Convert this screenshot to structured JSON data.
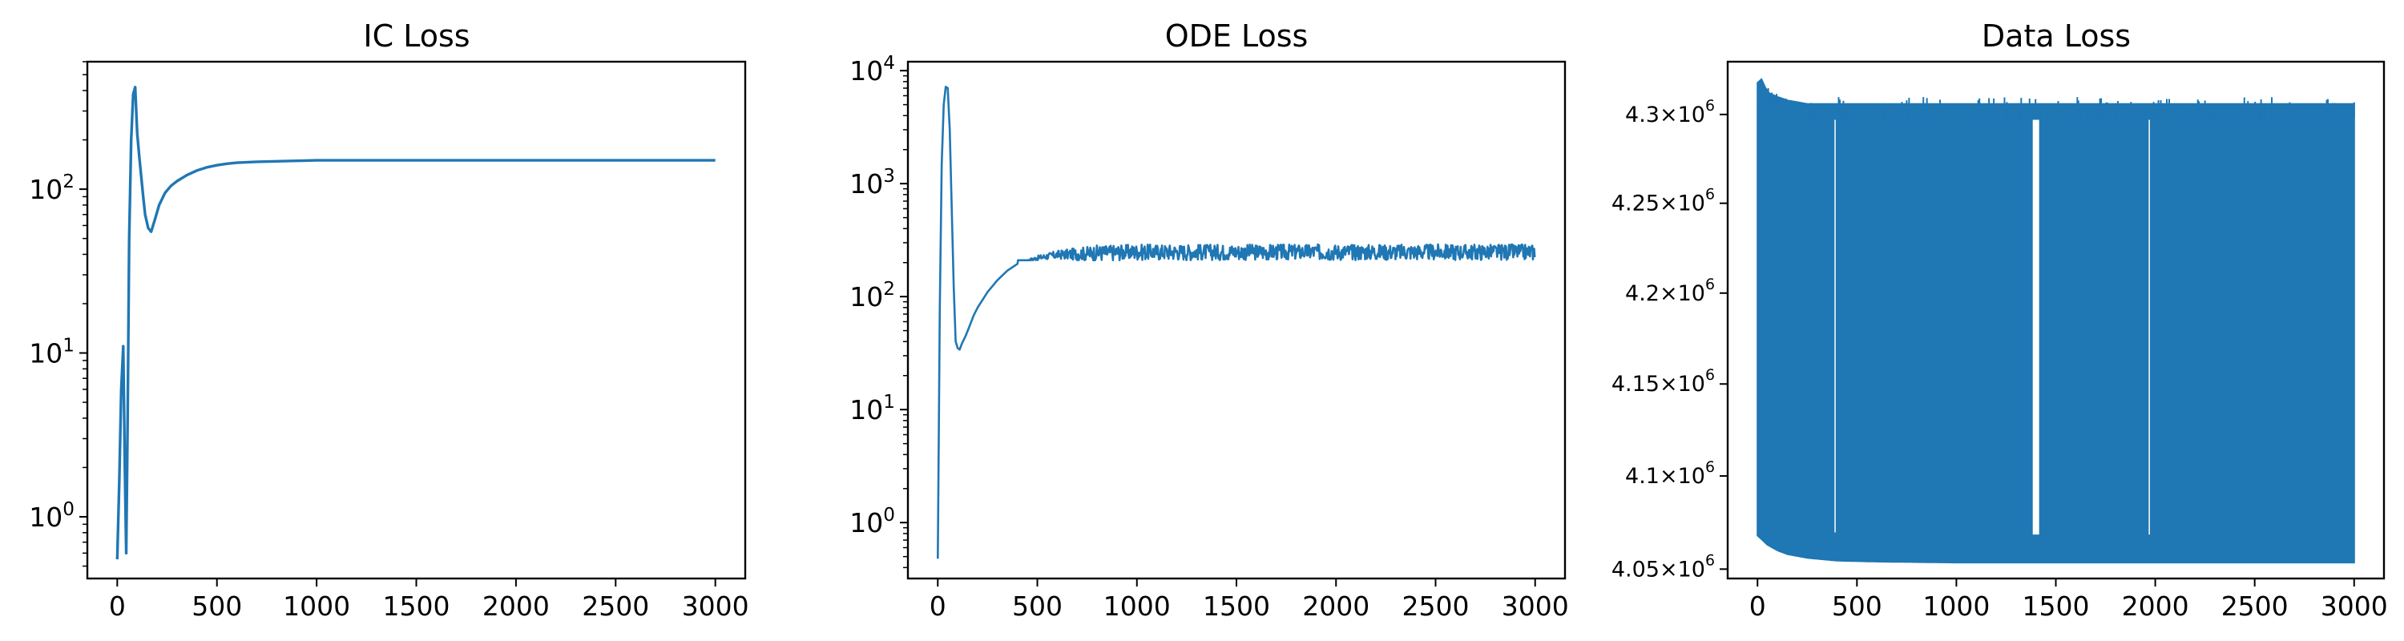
{
  "chart_data": [
    {
      "type": "line",
      "title": "IC Loss",
      "xlabel": "",
      "ylabel": "",
      "yscale": "log",
      "xlim": [
        -150,
        3150
      ],
      "ylim": [
        0.42,
        600
      ],
      "x_ticks": [
        0,
        500,
        1000,
        1500,
        2000,
        2500,
        3000
      ],
      "y_ticks": [
        1,
        10,
        100
      ],
      "y_tick_labels": [
        "10^0",
        "10^1",
        "10^2"
      ],
      "color": "#1f77b4",
      "grid": false,
      "series": [
        {
          "x": [
            0,
            10,
            20,
            30,
            38,
            45,
            52,
            60,
            70,
            80,
            90,
            100,
            110,
            120,
            130,
            140,
            155,
            170,
            190,
            210,
            240,
            270,
            300,
            350,
            400,
            450,
            500,
            550,
            600,
            700,
            800,
            900,
            1000,
            1200,
            1500,
            2000,
            2500,
            3000
          ],
          "y": [
            0.55,
            1.6,
            6,
            11,
            2,
            0.6,
            4,
            50,
            200,
            380,
            420,
            220,
            160,
            120,
            90,
            70,
            58,
            55,
            66,
            80,
            95,
            105,
            112,
            122,
            130,
            136,
            140,
            143,
            145,
            147,
            148,
            149,
            150,
            150,
            150,
            150,
            150,
            150
          ]
        }
      ]
    },
    {
      "type": "line",
      "title": "ODE Loss",
      "xlabel": "",
      "ylabel": "",
      "yscale": "log",
      "xlim": [
        -150,
        3150
      ],
      "ylim": [
        0.32,
        12000
      ],
      "x_ticks": [
        0,
        500,
        1000,
        1500,
        2000,
        2500,
        3000
      ],
      "y_ticks": [
        1,
        10,
        100,
        1000,
        10000
      ],
      "y_tick_labels": [
        "10^0",
        "10^1",
        "10^2",
        "10^3",
        "10^4"
      ],
      "color": "#1f77b4",
      "grid": false,
      "series": [
        {
          "x": [
            0,
            10,
            20,
            30,
            40,
            50,
            60,
            70,
            80,
            90,
            100,
            110,
            120,
            140,
            160,
            180,
            200,
            250,
            300,
            350,
            400,
            500,
            600,
            700,
            800,
            1000,
            1500,
            2000,
            2500,
            3000
          ],
          "y": [
            0.48,
            80,
            1500,
            5000,
            7200,
            7000,
            3000,
            600,
            120,
            40,
            35,
            34,
            38,
            45,
            55,
            68,
            80,
            110,
            140,
            170,
            195,
            220,
            235,
            240,
            245,
            250,
            250,
            250,
            250,
            250
          ],
          "noise_band_after_x": 400,
          "noise_band_y": [
            210,
            290
          ]
        }
      ]
    },
    {
      "type": "line",
      "title": "Data Loss",
      "xlabel": "",
      "ylabel": "",
      "yscale": "log",
      "xlim": [
        -150,
        3150
      ],
      "ylim": [
        4045000,
        4330000
      ],
      "x_ticks": [
        0,
        500,
        1000,
        1500,
        2000,
        2500,
        3000
      ],
      "y_ticks": [
        4050000,
        4100000,
        4150000,
        4200000,
        4250000,
        4300000
      ],
      "y_tick_labels": [
        "4.05×10^6",
        "4.1×10^6",
        "4.15×10^6",
        "4.2×10^6",
        "4.25×10^6",
        "4.3×10^6"
      ],
      "color": "#1f77b4",
      "grid": false,
      "series": [
        {
          "lower_envelope": {
            "x": [
              0,
              50,
              100,
              150,
              200,
              250,
              300,
              400,
              600,
              1000,
              3000
            ],
            "y": [
              4068000,
              4063000,
              4060000,
              4058000,
              4057000,
              4056000,
              4055500,
              4054500,
              4054000,
              4053500,
              4053500
            ]
          },
          "upper_envelope": {
            "x": [
              0,
              20,
              40,
              60,
              100,
              150,
              200,
              250,
              300,
              400,
              500,
              1000,
              1500,
              2000,
              2500,
              3000
            ],
            "y": [
              4318000,
              4320000,
              4315000,
              4312000,
              4310000,
              4308000,
              4307000,
              4306000,
              4306000,
              4306000,
              4306000,
              4306000,
              4306000,
              4306000,
              4306000,
              4306000
            ]
          },
          "gaps_x": [
            390,
            1390,
            1400,
            1410,
            1970
          ]
        }
      ]
    }
  ]
}
